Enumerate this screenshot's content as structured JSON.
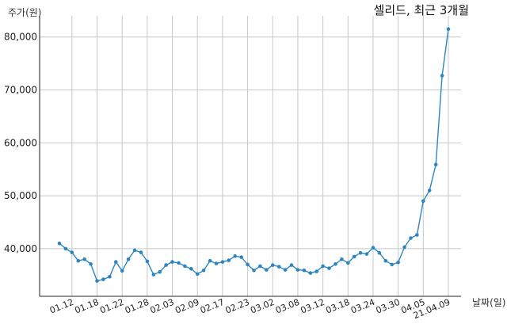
{
  "chart_data": {
    "type": "line",
    "title": "셀리드, 최근 3개월",
    "ylabel": "주가(원)",
    "xlabel": "날짜(일)",
    "ylim": [
      31000,
      84000
    ],
    "yticks": [
      40000,
      50000,
      60000,
      70000,
      80000
    ],
    "ytick_labels": [
      "40,000",
      "50,000",
      "60,000",
      "70,000",
      "80,000"
    ],
    "xtick_labels": [
      "01.12",
      "01.18",
      "01.22",
      "01.28",
      "02.03",
      "02.09",
      "02.17",
      "02.23",
      "03.02",
      "03.08",
      "03.12",
      "03.18",
      "03.24",
      "03.30",
      "04.05",
      "21.04.09"
    ],
    "xtick_index": [
      2,
      6,
      10,
      14,
      18,
      22,
      26,
      30,
      34,
      38,
      42,
      46,
      50,
      54,
      58,
      62
    ],
    "grid": true,
    "series": [
      {
        "color": "#2e86c1",
        "values": [
          41000,
          40000,
          39300,
          37700,
          38000,
          37100,
          33900,
          34200,
          34700,
          37500,
          35800,
          38000,
          39700,
          39300,
          37600,
          35100,
          35600,
          36900,
          37500,
          37300,
          36700,
          36200,
          35200,
          35900,
          37700,
          37200,
          37500,
          37800,
          38600,
          38400,
          37000,
          35900,
          36700,
          36000,
          36900,
          36600,
          36000,
          36900,
          36000,
          35900,
          35400,
          35700,
          36700,
          36300,
          37100,
          38000,
          37300,
          38500,
          39200,
          39000,
          40200,
          39200,
          37700,
          37000,
          37400,
          40300,
          42000,
          42600,
          49000,
          51000,
          55900,
          72700,
          81500
        ]
      }
    ]
  }
}
